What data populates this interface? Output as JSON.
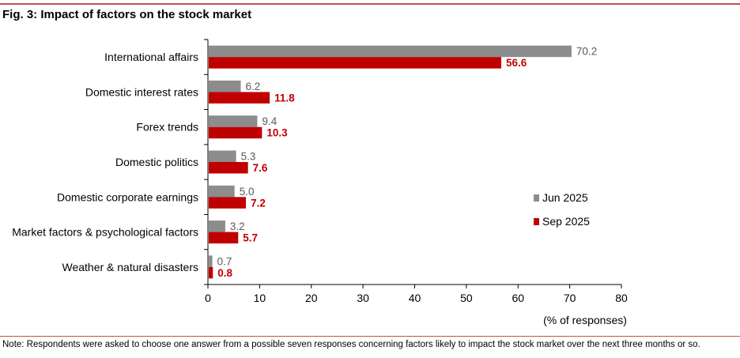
{
  "figure": {
    "title": "Fig. 3: Impact of factors on the stock market",
    "note": "Note: Respondents were asked to choose one answer from a possible seven responses concerning factors likely to impact the stock market over the next three months or so."
  },
  "chart_data": {
    "type": "bar",
    "orientation": "horizontal",
    "title": "",
    "xlabel": "(% of responses)",
    "ylabel": "",
    "xlim": [
      0,
      80
    ],
    "x_ticks": [
      0,
      10,
      20,
      30,
      40,
      50,
      60,
      70,
      80
    ],
    "grid": false,
    "legend_position": "right",
    "categories": [
      "International affairs",
      "Domestic interest rates",
      "Forex trends",
      "Domestic politics",
      "Domestic corporate earnings",
      "Market factors & psychological factors",
      "Weather & natural disasters"
    ],
    "series": [
      {
        "name": "Jun 2025",
        "color": "#8c8c8c",
        "label_color": "#595959",
        "values": [
          70.2,
          6.2,
          9.4,
          5.3,
          5.0,
          3.2,
          0.7
        ],
        "labels": [
          "70.2",
          "6.2",
          "9.4",
          "5.3",
          "5.0",
          "3.2",
          "0.7"
        ]
      },
      {
        "name": "Sep 2025",
        "color": "#c00000",
        "label_color": "#c00000",
        "values": [
          56.6,
          11.8,
          10.3,
          7.6,
          7.2,
          5.7,
          0.8
        ],
        "labels": [
          "56.6",
          "11.8",
          "10.3",
          "7.6",
          "7.2",
          "5.7",
          "0.8"
        ]
      }
    ]
  }
}
